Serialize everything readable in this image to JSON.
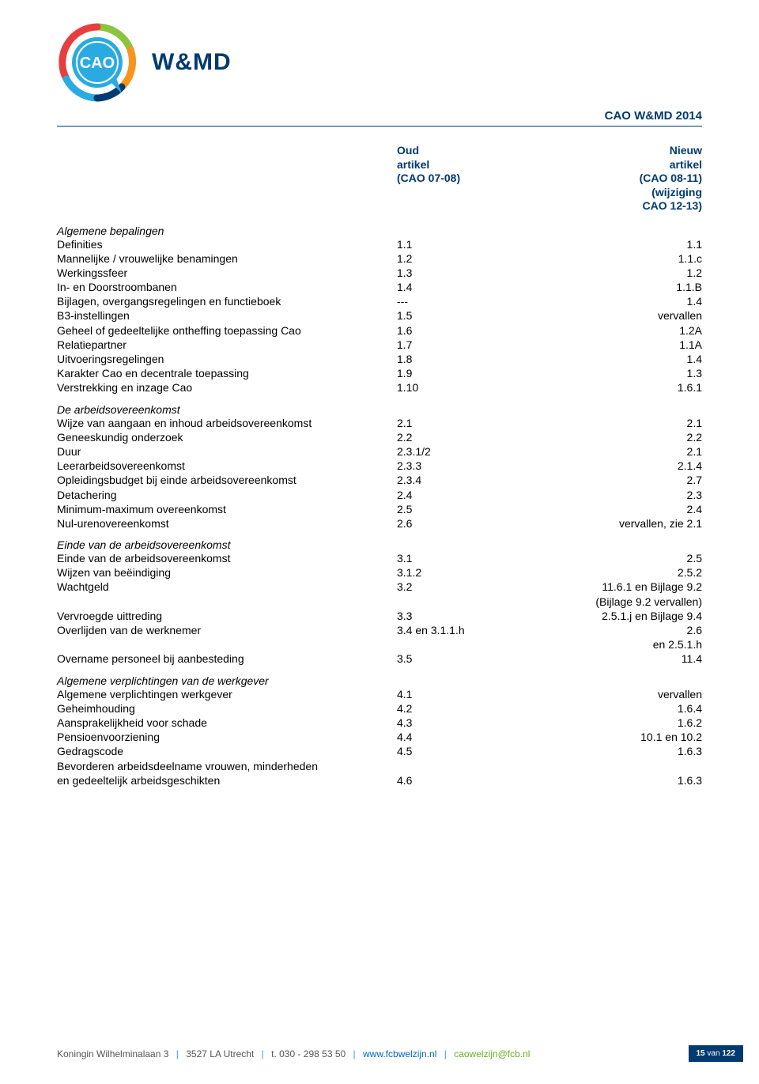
{
  "brand_text": "W&MD",
  "doc_title": "CAO W&MD 2014",
  "logo": {
    "ring_outer_green": "#8bc53f",
    "ring_outer_orange": "#f7941d",
    "ring_outer_red": "#e63e3e",
    "bubble_fill": "#29abe2",
    "inner_stroke": "#ffffff",
    "text": "CAO",
    "text_color": "#ffffff"
  },
  "column_headers": {
    "left_line1": "Oud",
    "left_line2": "artikel",
    "left_line3": "(CAO 07-08)",
    "right_line1": "Nieuw",
    "right_line2": "artikel",
    "right_line3": "(CAO 08-11)",
    "right_line4": "(wijziging",
    "right_line5": "CAO 12-13)"
  },
  "sections": [
    {
      "title": "Algemene bepalingen",
      "rows": [
        {
          "label": "Definities",
          "a": "1.1",
          "b": "1.1"
        },
        {
          "label": "Mannelijke / vrouwelijke benamingen",
          "a": "1.2",
          "b": "1.1.c"
        },
        {
          "label": "Werkingssfeer",
          "a": "1.3",
          "b": "1.2"
        },
        {
          "label": "In- en Doorstroombanen",
          "a": "1.4",
          "b": "1.1.B"
        },
        {
          "label": "Bijlagen, overgangsregelingen en functieboek",
          "a": "---",
          "b": "1.4"
        },
        {
          "label": "B3-instellingen",
          "a": "1.5",
          "b": "vervallen"
        },
        {
          "label": "Geheel of gedeeltelijke ontheffing toepassing Cao",
          "a": "1.6",
          "b": "1.2A"
        },
        {
          "label": "Relatiepartner",
          "a": "1.7",
          "b": "1.1A"
        },
        {
          "label": "Uitvoeringsregelingen",
          "a": "1.8",
          "b": "1.4"
        },
        {
          "label": "Karakter Cao en decentrale toepassing",
          "a": "1.9",
          "b": "1.3"
        },
        {
          "label": "Verstrekking en inzage Cao",
          "a": "1.10",
          "b": "1.6.1"
        }
      ]
    },
    {
      "title": "De arbeidsovereenkomst",
      "rows": [
        {
          "label": "Wijze van aangaan en inhoud arbeidsovereenkomst",
          "a": "2.1",
          "b": "2.1"
        },
        {
          "label": "Geneeskundig onderzoek",
          "a": "2.2",
          "b": "2.2"
        },
        {
          "label": "Duur",
          "a": "2.3.1/2",
          "b": "2.1"
        },
        {
          "label": "Leerarbeidsovereenkomst",
          "a": "2.3.3",
          "b": "2.1.4"
        },
        {
          "label": "Opleidingsbudget bij einde arbeidsovereenkomst",
          "a": "2.3.4",
          "b": "2.7"
        },
        {
          "label": "Detachering",
          "a": "2.4",
          "b": "2.3"
        },
        {
          "label": "Minimum-maximum overeenkomst",
          "a": "2.5",
          "b": "2.4"
        },
        {
          "label": "Nul-urenovereenkomst",
          "a": "2.6",
          "b": "vervallen, zie 2.1"
        }
      ]
    },
    {
      "title": "Einde van de arbeidsovereenkomst",
      "rows": [
        {
          "label": "Einde van de arbeidsovereenkomst",
          "a": "3.1",
          "b": "2.5"
        },
        {
          "label": "Wijzen van beëindiging",
          "a": "3.1.2",
          "b": "2.5.2"
        },
        {
          "label": "Wachtgeld",
          "a": "3.2",
          "b": "11.6.1 en Bijlage 9.2"
        },
        {
          "label": "",
          "a": "",
          "b": "(Bijlage 9.2 vervallen)"
        },
        {
          "label": "Vervroegde uittreding",
          "a": "3.3",
          "b": "2.5.1.j en Bijlage 9.4"
        },
        {
          "label": "Overlijden van de werknemer",
          "a": "3.4 en 3.1.1.h",
          "b": "2.6"
        },
        {
          "label": "",
          "a": "",
          "b": "en 2.5.1.h"
        },
        {
          "label": "Overname personeel bij aanbesteding",
          "a": "3.5",
          "b": "11.4"
        }
      ]
    },
    {
      "title": "Algemene verplichtingen van de werkgever",
      "rows": [
        {
          "label": "Algemene verplichtingen werkgever",
          "a": "4.1",
          "b": "vervallen"
        },
        {
          "label": "Geheimhouding",
          "a": "4.2",
          "b": "1.6.4"
        },
        {
          "label": "Aansprakelijkheid voor schade",
          "a": "4.3",
          "b": "1.6.2"
        },
        {
          "label": "Pensioenvoorziening",
          "a": "4.4",
          "b": "10.1 en 10.2"
        },
        {
          "label": "Gedragscode",
          "a": "4.5",
          "b": "1.6.3"
        },
        {
          "label": "Bevorderen arbeidsdeelname vrouwen, minderheden",
          "a": "",
          "b": ""
        },
        {
          "label": "en gedeeltelijk arbeidsgeschikten",
          "a": "4.6",
          "b": "1.6.3"
        }
      ]
    }
  ],
  "footer": {
    "address": "Koningin Wilhelminalaan 3",
    "city": "3527 LA  Utrecht",
    "phone_label": "t.",
    "phone": "030 - 298 53 50",
    "url": "www.fcbwelzijn.nl",
    "email": "caowelzijn@fcb.nl"
  },
  "page_number": {
    "current": "15",
    "of_label": "van",
    "total": "122"
  },
  "colors": {
    "brand_blue": "#003a70",
    "link_blue": "#0066cc",
    "link_green": "#6ab023",
    "sep_blue": "#3a9bd9",
    "page_badge_bg": "#003a70"
  }
}
